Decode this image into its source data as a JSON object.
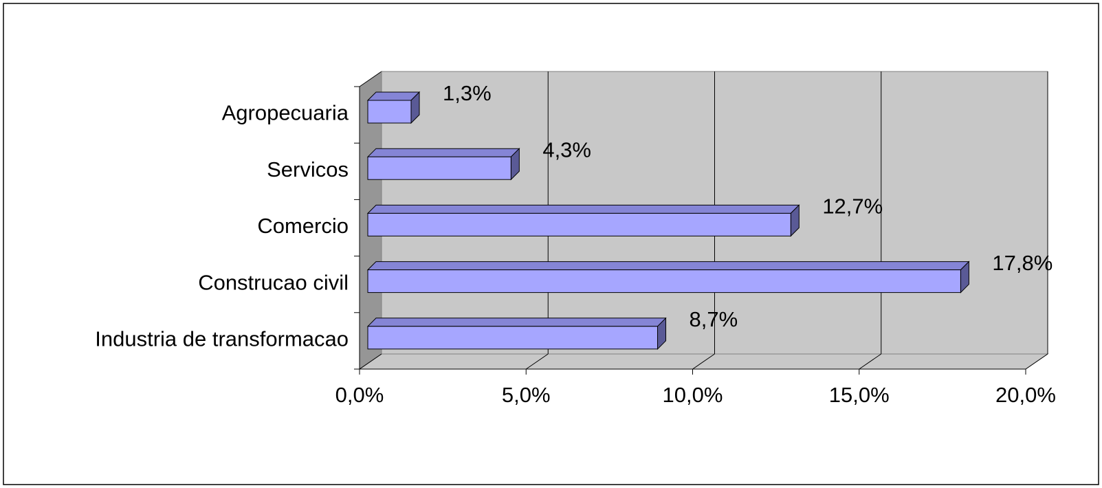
{
  "chart_data": {
    "type": "bar3d_horizontal",
    "categories": [
      "Agropecuaria",
      "Servicos",
      "Comercio",
      "Construcao civil",
      "Industria de transformacao"
    ],
    "values": [
      1.3,
      4.3,
      12.7,
      17.8,
      8.7
    ],
    "value_labels": [
      "1,3%",
      "4,3%",
      "12,7%",
      "17,8%",
      "8,7%"
    ],
    "color": "#a6a6ff",
    "xlim": [
      0,
      20
    ],
    "xticks": [
      {
        "value": 0,
        "label": "0,0%"
      },
      {
        "value": 5,
        "label": "5,0%"
      },
      {
        "value": 10,
        "label": "10,0%"
      },
      {
        "value": 15,
        "label": "15,0%"
      },
      {
        "value": 20,
        "label": "20,0%"
      }
    ],
    "grid": true
  }
}
